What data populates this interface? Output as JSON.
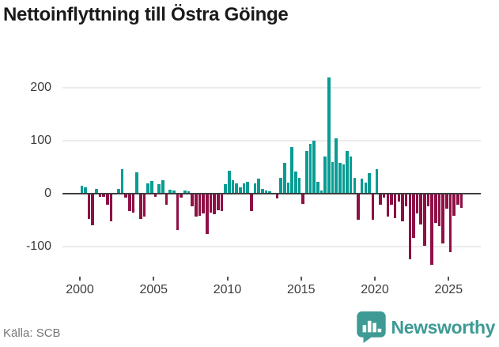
{
  "title": "Nettoinflyttning till Östra Göinge",
  "source": "Källa: SCB",
  "brand": {
    "name": "Newsworthy",
    "logo_icon": "bar-chart-badge-icon",
    "color": "#3d9a94"
  },
  "colors": {
    "positive_bar": "#089c93",
    "negative_bar": "#8e1045",
    "zero_line": "#3d3d3d",
    "gridline": "#ebebeb",
    "axis_text": "#3d3d3d",
    "source_text": "#767676"
  },
  "chart_data": {
    "type": "bar",
    "title": "Nettoinflyttning till Östra Göinge",
    "xlabel": "",
    "ylabel": "",
    "x_unit": "quarter",
    "start_year": 2000,
    "frequency": "quarterly",
    "grid": "horizontal",
    "legend": "none",
    "ylim": [
      -150,
      250
    ],
    "y_ticks": [
      {
        "label": "200",
        "value": 200
      },
      {
        "label": "100",
        "value": 100
      },
      {
        "label": "0",
        "value": 0
      },
      {
        "label": "-100",
        "value": -100
      }
    ],
    "x_ticks": [
      {
        "label": "2000",
        "year": 2000
      },
      {
        "label": "2005",
        "year": 2005
      },
      {
        "label": "2010",
        "year": 2010
      },
      {
        "label": "2015",
        "year": 2015
      },
      {
        "label": "2020",
        "year": 2020
      },
      {
        "label": "2025",
        "year": 2025
      }
    ],
    "values": [
      13,
      10,
      -46,
      -58,
      7,
      -5,
      -4,
      -20,
      -50,
      0,
      7,
      45,
      -6,
      -31,
      -34,
      38,
      -46,
      -41,
      18,
      23,
      -4,
      17,
      24,
      -20,
      6,
      5,
      -67,
      -6,
      4,
      3,
      -22,
      -42,
      -40,
      -36,
      -75,
      -34,
      -37,
      -30,
      -31,
      16,
      42,
      24,
      18,
      11,
      18,
      21,
      -31,
      18,
      27,
      8,
      4,
      3,
      0,
      -8,
      29,
      57,
      20,
      86,
      40,
      28,
      -18,
      79,
      93,
      98,
      21,
      5,
      68,
      217,
      58,
      103,
      57,
      54,
      79,
      68,
      29,
      -48,
      27,
      19,
      37,
      -48,
      45,
      -19,
      -6,
      -42,
      -20,
      -45,
      -14,
      -50,
      -22,
      -122,
      -82,
      -35,
      -57,
      -96,
      -22,
      -133,
      -54,
      -59,
      -92,
      -27,
      -109,
      -40,
      -20,
      -25
    ]
  }
}
